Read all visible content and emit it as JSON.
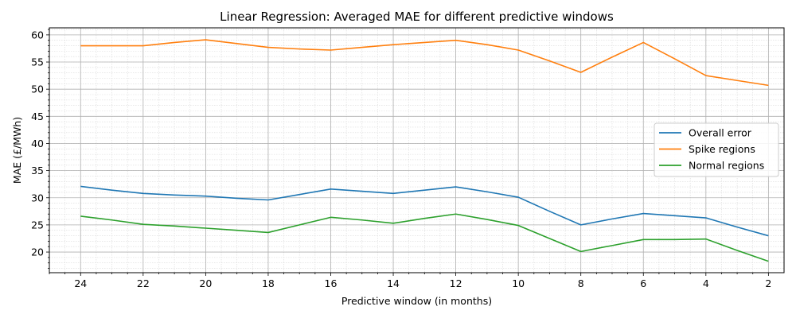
{
  "chart_data": {
    "type": "line",
    "title": "Linear Regression: Averaged MAE for different predictive windows",
    "xlabel": "Predictive window (in months)",
    "ylabel": "MAE (£/MWh)",
    "x": [
      24,
      23,
      22,
      21,
      20,
      19,
      18,
      17,
      16,
      15,
      14,
      13,
      12,
      11,
      10,
      9,
      8,
      7,
      6,
      5,
      4,
      3,
      2
    ],
    "x_ticks": [
      24,
      22,
      20,
      18,
      16,
      14,
      12,
      10,
      8,
      6,
      4,
      2
    ],
    "x_inverted": true,
    "xlim": [
      25.0,
      1.5
    ],
    "ylim": [
      16.2,
      61.3
    ],
    "y_ticks": [
      20,
      25,
      30,
      35,
      40,
      45,
      50,
      55,
      60
    ],
    "grid": true,
    "minor_grid": true,
    "legend_position": "center-right",
    "series": [
      {
        "name": "Overall error",
        "color": "#1f77b4",
        "values": [
          32.1,
          31.4,
          30.8,
          30.5,
          30.3,
          29.9,
          29.6,
          30.6,
          31.6,
          31.2,
          30.8,
          31.4,
          32.0,
          31.1,
          30.1,
          27.5,
          25.0,
          26.1,
          27.1,
          26.7,
          26.3,
          24.6,
          23.0
        ]
      },
      {
        "name": "Spike regions",
        "color": "#ff7f0e",
        "values": [
          58.0,
          58.0,
          58.0,
          58.6,
          59.1,
          58.4,
          57.7,
          57.4,
          57.2,
          57.7,
          58.2,
          58.6,
          59.0,
          58.2,
          57.2,
          55.2,
          53.1,
          55.9,
          58.6,
          55.6,
          52.5,
          51.6,
          50.7
        ]
      },
      {
        "name": "Normal regions",
        "color": "#2ca02c",
        "values": [
          26.6,
          25.9,
          25.1,
          24.8,
          24.4,
          24.0,
          23.6,
          25.0,
          26.4,
          25.9,
          25.3,
          26.2,
          27.0,
          26.0,
          24.9,
          22.5,
          20.1,
          21.2,
          22.3,
          22.3,
          22.4,
          20.3,
          18.3
        ]
      }
    ]
  }
}
